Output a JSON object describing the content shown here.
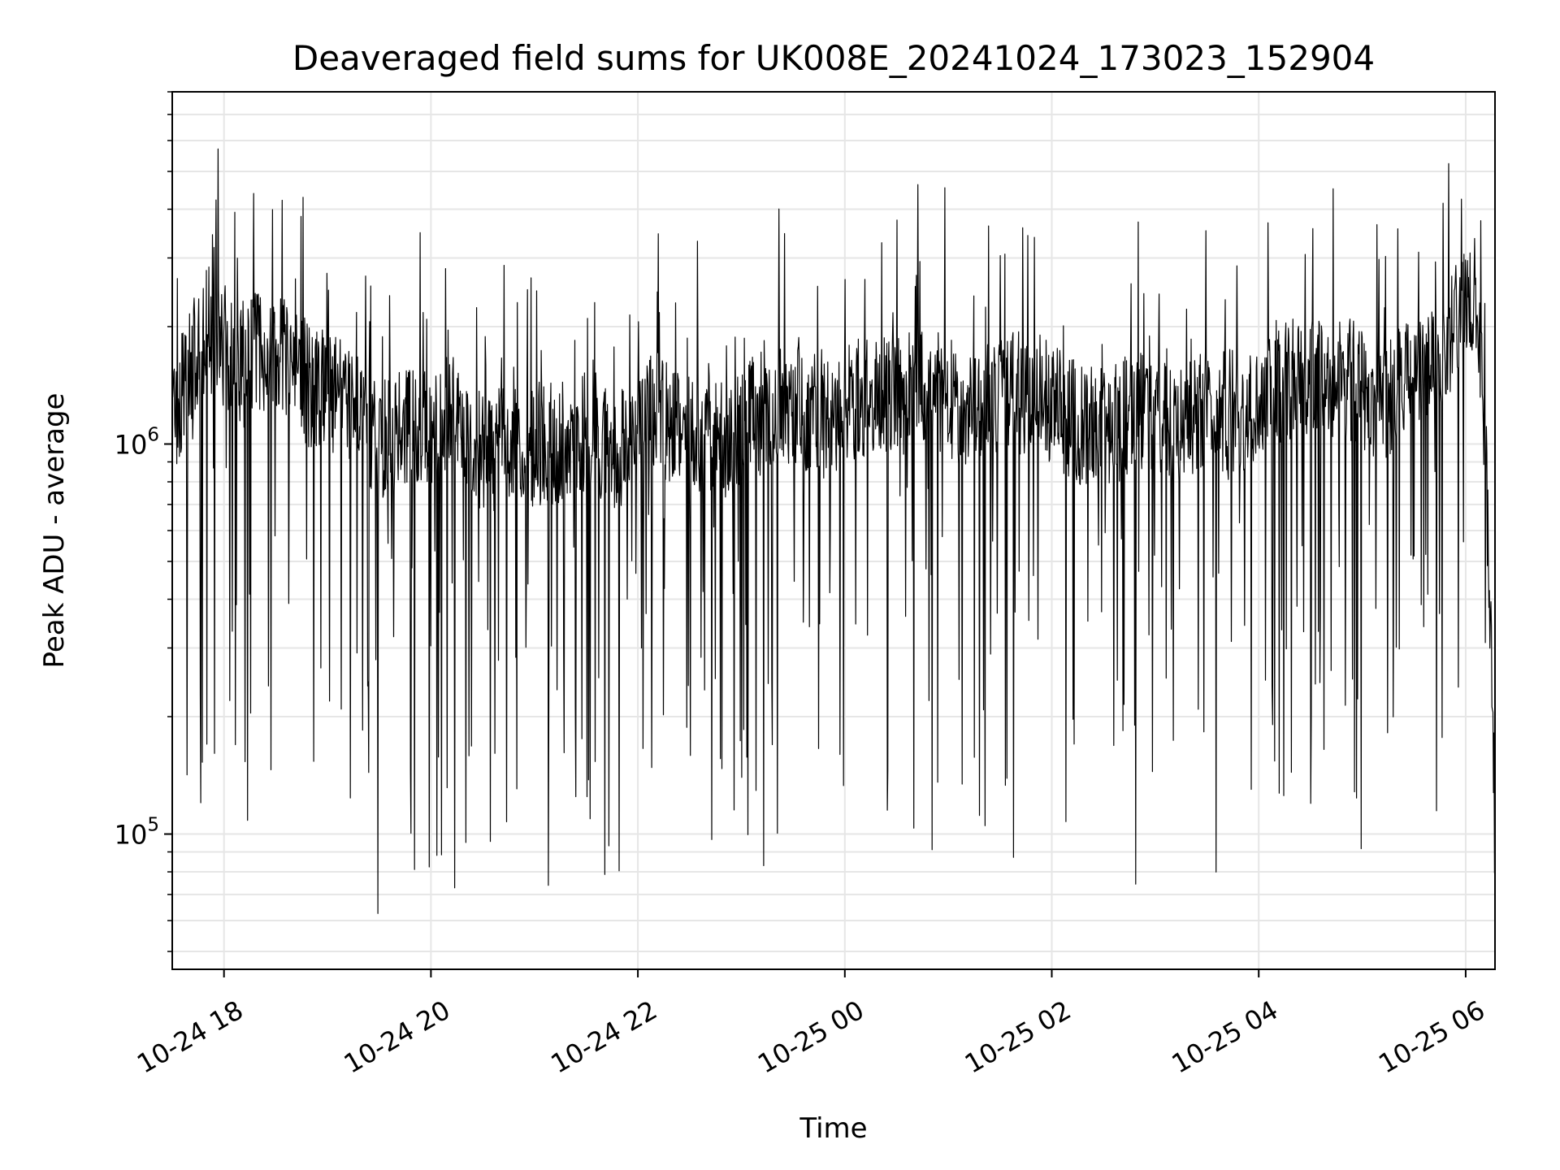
{
  "chart_data": {
    "type": "line",
    "title": "Deaveraged field sums for UK008E_20241024_173023_152904",
    "xlabel": "Time",
    "ylabel": "Peak ADU - average",
    "y_scale": "log",
    "ylim": [
      45000,
      8000000
    ],
    "xlim": [
      "2024-10-24T17:30",
      "2024-10-25T06:17"
    ],
    "x_ticks": [
      {
        "time": "2024-10-24T18:00",
        "label": "10-24 18"
      },
      {
        "time": "2024-10-24T20:00",
        "label": "10-24 20"
      },
      {
        "time": "2024-10-24T22:00",
        "label": "10-24 22"
      },
      {
        "time": "2024-10-25T00:00",
        "label": "10-25 00"
      },
      {
        "time": "2024-10-25T02:00",
        "label": "10-25 02"
      },
      {
        "time": "2024-10-25T04:00",
        "label": "10-25 04"
      },
      {
        "time": "2024-10-25T06:00",
        "label": "10-25 06"
      }
    ],
    "y_ticks": [
      {
        "value": 100000,
        "base": "10",
        "exp": "5"
      },
      {
        "value": 1000000,
        "base": "10",
        "exp": "6"
      }
    ],
    "grid": true,
    "line_color": "#000000",
    "series": [
      {
        "x": [
          "2024-10-24T17:30",
          "2024-10-24T17:50",
          "2024-10-24T18:10",
          "2024-10-24T18:30",
          "2024-10-24T18:50",
          "2024-10-24T19:10",
          "2024-10-24T19:30",
          "2024-10-24T19:50",
          "2024-10-24T20:10",
          "2024-10-24T20:30",
          "2024-10-24T20:50",
          "2024-10-24T21:10",
          "2024-10-24T21:30",
          "2024-10-24T21:50",
          "2024-10-24T22:10",
          "2024-10-24T22:30",
          "2024-10-24T22:50",
          "2024-10-24T23:10",
          "2024-10-24T23:30",
          "2024-10-24T23:50",
          "2024-10-25T00:10",
          "2024-10-25T00:30",
          "2024-10-25T00:50",
          "2024-10-25T01:10",
          "2024-10-25T01:30",
          "2024-10-25T01:50",
          "2024-10-25T02:10",
          "2024-10-25T02:30",
          "2024-10-25T02:50",
          "2024-10-25T03:10",
          "2024-10-25T03:30",
          "2024-10-25T03:50",
          "2024-10-25T04:10",
          "2024-10-25T04:30",
          "2024-10-25T04:50",
          "2024-10-25T05:10",
          "2024-10-25T05:30",
          "2024-10-25T05:50",
          "2024-10-25T06:05",
          "2024-10-25T06:10",
          "2024-10-25T06:14",
          "2024-10-25T06:17"
        ],
        "values": [
          1200000,
          2000000,
          1600000,
          1800000,
          1400000,
          1300000,
          1000000,
          1100000,
          1200000,
          950000,
          1000000,
          1000000,
          1100000,
          950000,
          1200000,
          1100000,
          1000000,
          1200000,
          1250000,
          1200000,
          1300000,
          1300000,
          1450000,
          1200000,
          1300000,
          1400000,
          1150000,
          1100000,
          1200000,
          1100000,
          1250000,
          1200000,
          1400000,
          1500000,
          1500000,
          1300000,
          1500000,
          1900000,
          2500000,
          1500000,
          400000,
          100000
        ]
      }
    ]
  }
}
